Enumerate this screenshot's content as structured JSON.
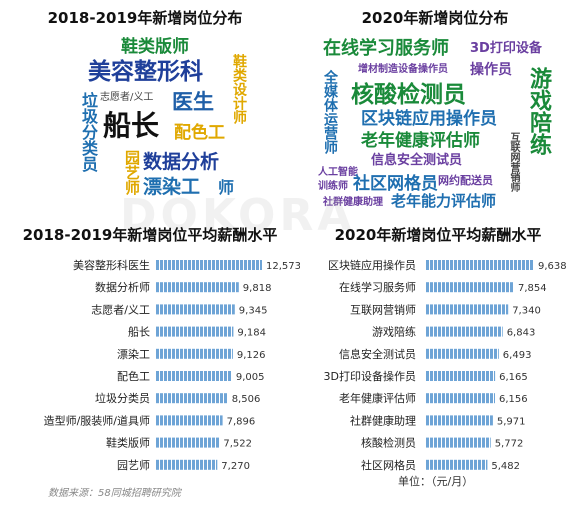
{
  "cloud_left": {
    "title": "2018-2019年新增岗位分布",
    "words": [
      "鞋类版师",
      "美容整形科",
      "鞋类设计师",
      "医生",
      "志愿者/义工",
      "垃圾分类员",
      "船长",
      "配色工",
      "园艺师",
      "数据分析",
      "漂染工",
      "师"
    ]
  },
  "cloud_right": {
    "title": "2020年新增岗位分布",
    "words": [
      "在线学习服务师",
      "3D打印设备",
      "增材制造设备操作员",
      "操作员",
      "游戏陪练",
      "全媒体运营师",
      "核酸检测员",
      "区块链应用操作员",
      "老年健康评估师",
      "互联网营销师",
      "信息安全测试员",
      "人工智能",
      "训练师",
      "社区网格员",
      "网约配送员",
      "社群健康助理",
      "老年能力评估师"
    ]
  },
  "watermark": "DOKORA",
  "chart_data": [
    {
      "type": "bar",
      "title": "2018-2019年新增岗位平均薪酬水平",
      "categories": [
        "美容整形科医生",
        "数据分析师",
        "志愿者/义工",
        "船长",
        "漂染工",
        "配色工",
        "垃圾分类员",
        "造型师/服装师/道具师",
        "鞋类版师",
        "园艺师"
      ],
      "values": [
        12573,
        9818,
        9345,
        9184,
        9126,
        9005,
        8506,
        7896,
        7522,
        7270
      ],
      "value_labels": [
        "12,573",
        "9,818",
        "9,345",
        "9,184",
        "9,126",
        "9,005",
        "8,506",
        "7,896",
        "7,522",
        "7,270"
      ],
      "orientation": "horizontal",
      "xlim": [
        0,
        12573
      ]
    },
    {
      "type": "bar",
      "title": "2020年新增岗位平均薪酬水平",
      "categories": [
        "区块链应用操作员",
        "在线学习服务师",
        "互联网营销师",
        "游戏陪练",
        "信息安全测试员",
        "3D打印设备操作员",
        "老年健康评估师",
        "社群健康助理",
        "核酸检测员",
        "社区网格员"
      ],
      "values": [
        9638,
        7854,
        7340,
        6843,
        6493,
        6165,
        6156,
        5971,
        5772,
        5482
      ],
      "value_labels": [
        "9,638",
        "7,854",
        "7,340",
        "6,843",
        "6,493",
        "6,165",
        "6,156",
        "5,971",
        "5,772",
        "5,482"
      ],
      "orientation": "horizontal",
      "xlim": [
        0,
        9638
      ]
    }
  ],
  "unit_label": "单位：（元/月）",
  "source": "数据来源：58同城招聘研究院",
  "colors": {
    "bar": "#6ea4d6",
    "bar_stripe": "#ffffff"
  }
}
